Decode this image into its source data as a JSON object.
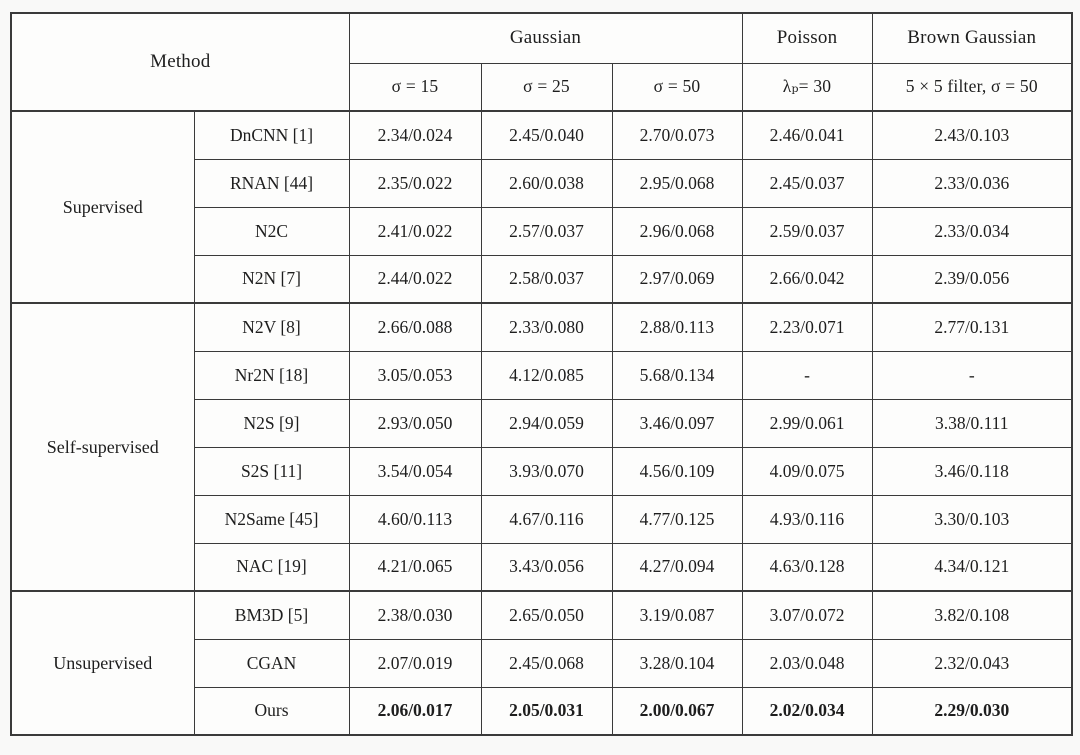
{
  "table": {
    "method_header": "Method",
    "col_groups": [
      {
        "label": "Gaussian",
        "sub_labels": [
          "σ = 15",
          "σ = 25",
          "σ = 50"
        ]
      },
      {
        "label": "Poisson",
        "sub_labels": [
          "λₚ= 30"
        ]
      },
      {
        "label": "Brown Gaussian",
        "sub_labels": [
          "5 × 5 filter, σ = 50"
        ]
      }
    ],
    "row_groups": [
      {
        "label": "Supervised",
        "rows": [
          {
            "method": "DnCNN [1]",
            "values": [
              "2.34/0.024",
              "2.45/0.040",
              "2.70/0.073",
              "2.46/0.041",
              "2.43/0.103"
            ]
          },
          {
            "method": "RNAN [44]",
            "values": [
              "2.35/0.022",
              "2.60/0.038",
              "2.95/0.068",
              "2.45/0.037",
              "2.33/0.036"
            ]
          },
          {
            "method": "N2C",
            "values": [
              "2.41/0.022",
              "2.57/0.037",
              "2.96/0.068",
              "2.59/0.037",
              "2.33/0.034"
            ]
          },
          {
            "method": "N2N [7]",
            "values": [
              "2.44/0.022",
              "2.58/0.037",
              "2.97/0.069",
              "2.66/0.042",
              "2.39/0.056"
            ]
          }
        ]
      },
      {
        "label": "Self-supervised",
        "rows": [
          {
            "method": "N2V [8]",
            "values": [
              "2.66/0.088",
              "2.33/0.080",
              "2.88/0.113",
              "2.23/0.071",
              "2.77/0.131"
            ]
          },
          {
            "method": "Nr2N [18]",
            "values": [
              "3.05/0.053",
              "4.12/0.085",
              "5.68/0.134",
              "-",
              "-"
            ]
          },
          {
            "method": "N2S [9]",
            "values": [
              "2.93/0.050",
              "2.94/0.059",
              "3.46/0.097",
              "2.99/0.061",
              "3.38/0.111"
            ]
          },
          {
            "method": "S2S [11]",
            "values": [
              "3.54/0.054",
              "3.93/0.070",
              "4.56/0.109",
              "4.09/0.075",
              "3.46/0.118"
            ]
          },
          {
            "method": "N2Same [45]",
            "values": [
              "4.60/0.113",
              "4.67/0.116",
              "4.77/0.125",
              "4.93/0.116",
              "3.30/0.103"
            ]
          },
          {
            "method": "NAC [19]",
            "values": [
              "4.21/0.065",
              "3.43/0.056",
              "4.27/0.094",
              "4.63/0.128",
              "4.34/0.121"
            ]
          }
        ]
      },
      {
        "label": "Unsupervised",
        "rows": [
          {
            "method": "BM3D [5]",
            "values": [
              "2.38/0.030",
              "2.65/0.050",
              "3.19/0.087",
              "3.07/0.072",
              "3.82/0.108"
            ]
          },
          {
            "method": "CGAN",
            "values": [
              "2.07/0.019",
              "2.45/0.068",
              "3.28/0.104",
              "2.03/0.048",
              "2.32/0.043"
            ]
          },
          {
            "method": "Ours",
            "values": [
              "2.06/0.017",
              "2.05/0.031",
              "2.00/0.067",
              "2.02/0.034",
              "2.29/0.030"
            ],
            "bold": true
          }
        ]
      }
    ],
    "colors": {
      "border": "#3a3a3a",
      "text": "#1e1e1e",
      "cell_background": "#fdfdfc",
      "page_background": "#f9f9f8"
    }
  }
}
